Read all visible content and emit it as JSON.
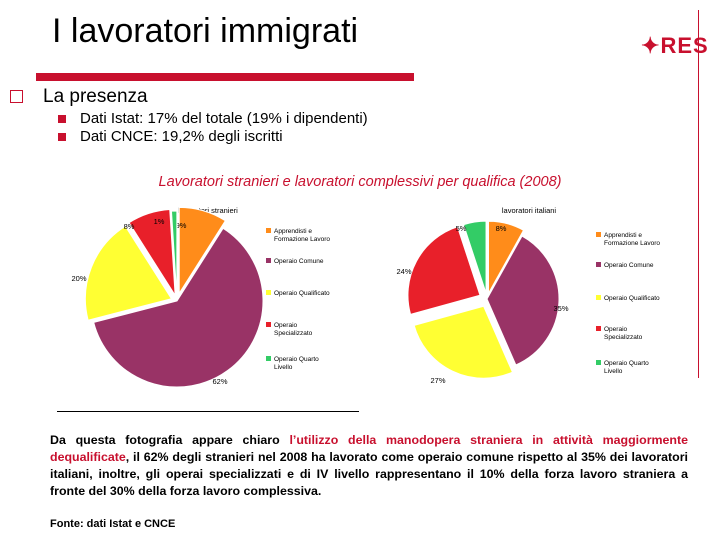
{
  "header": {
    "title": "I lavoratori immigrati",
    "logo_text": "RES",
    "brand_color": "#c8102e"
  },
  "bullets": {
    "main": "La presenza",
    "sub": [
      "Dati Istat: 17% del totale (19% i dipendenti)",
      "Dati CNCE: 19,2% degli iscritti"
    ]
  },
  "chart_heading": "Lavoratori stranieri e lavoratori complessivi per qualifica (2008)",
  "chart_data": [
    {
      "type": "pie",
      "title": "lavoratori stranieri",
      "categories": [
        "Apprendisti e Formazione Lavoro",
        "Operaio Comune",
        "Operaio Qualificato",
        "Operaio Specializzato",
        "Operaio Quarto Livello"
      ],
      "values": [
        9,
        62,
        20,
        8,
        1
      ],
      "labels": [
        "9%",
        "62%",
        "20%",
        "8%",
        "1%"
      ],
      "colors": [
        "#ff8c1a",
        "#993366",
        "#ffff33",
        "#e8202a",
        "#33cc66"
      ]
    },
    {
      "type": "pie",
      "title": "lavoratori italiani",
      "categories": [
        "Apprendisti e Formazione Lavoro",
        "Operaio Comune",
        "Operaio Qualificato",
        "Operaio Specializzato",
        "Operaio Quarto Livello"
      ],
      "values": [
        8,
        35,
        27,
        24,
        5
      ],
      "labels": [
        "8%",
        "35%",
        "27%",
        "24%",
        "5%"
      ],
      "colors": [
        "#ff8c1a",
        "#993366",
        "#ffff33",
        "#e8202a",
        "#33cc66"
      ]
    }
  ],
  "paragraph": {
    "p1": "Da questa fotografia appare chiaro ",
    "highlight": "l’utilizzo della manodopera straniera in attività maggiormente dequalificate",
    "p2": ", il 62% degli stranieri nel 2008 ha lavorato come operaio comune rispetto al 35% dei lavoratori italiani, inoltre, gli operai specializzati e di IV livello rappresentano il 10% della forza lavoro straniera a fronte del 30% della forza lavoro complessiva."
  },
  "source": "Fonte: dati Istat e CNCE"
}
